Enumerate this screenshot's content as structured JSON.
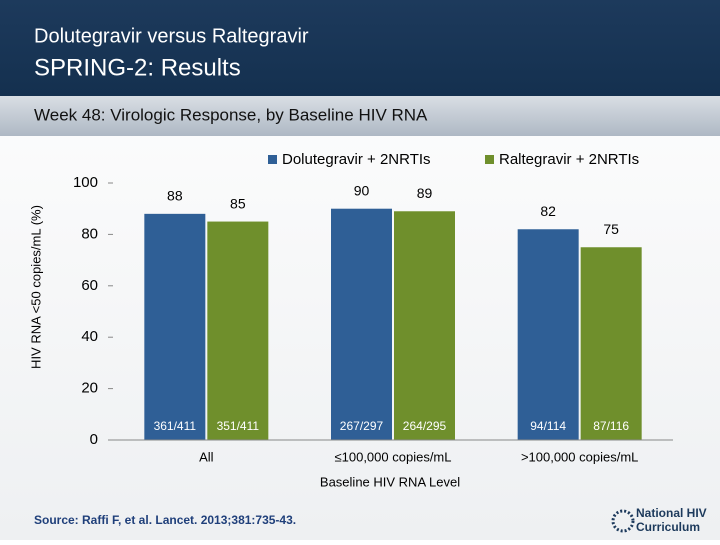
{
  "header": {
    "title": "Dolutegravir versus Raltegravir",
    "subtitle": "SPRING-2: Results",
    "section": "Week 48: Virologic Response, by Baseline HIV RNA"
  },
  "chart_data": {
    "type": "bar",
    "categories": [
      "All",
      "≤100,000 copies/mL",
      ">100,000 copies/mL"
    ],
    "series": [
      {
        "name": "Dolutegravir + 2NRTIs",
        "color": "#2f5f96",
        "values": [
          88,
          90,
          82
        ],
        "counts": [
          "361/411",
          "267/297",
          "94/114"
        ]
      },
      {
        "name": "Raltegravir + 2NRTIs",
        "color": "#6f8f2c",
        "values": [
          85,
          89,
          75
        ],
        "counts": [
          "351/411",
          "264/295",
          "87/116"
        ]
      }
    ],
    "ylim": [
      0,
      100
    ],
    "yticks": [
      0,
      20,
      40,
      60,
      80,
      100
    ],
    "x_label": "Baseline HIV RNA Level",
    "y_label": "HIV RNA <50 copies/mL (%)",
    "legend": "top",
    "grid": false
  },
  "footer": {
    "source": "Source: Raffi F, et al. Lancet. 2013;381:735-43.",
    "logo_line1": "National HIV",
    "logo_line2": "Curriculum"
  }
}
